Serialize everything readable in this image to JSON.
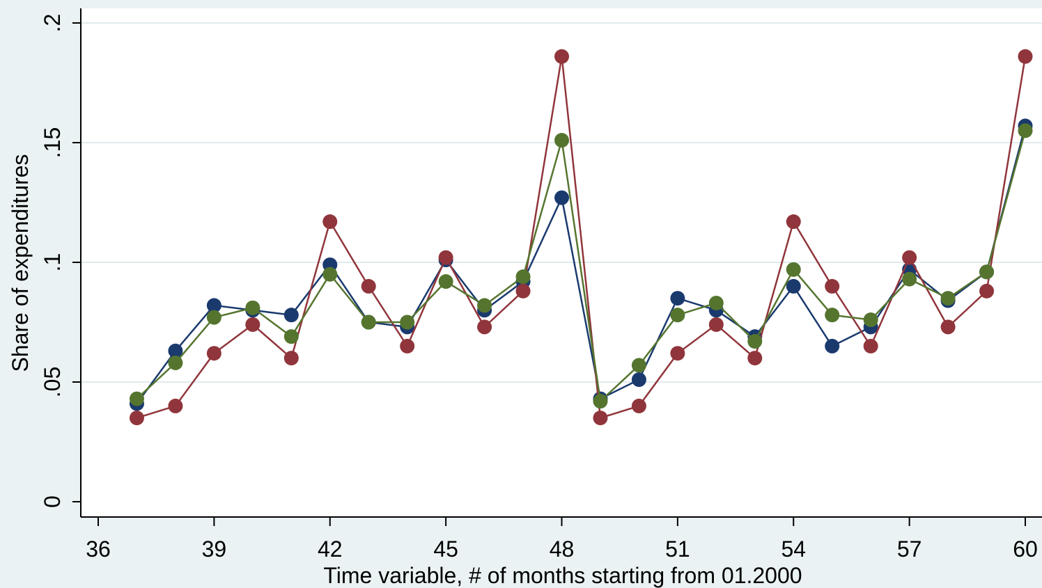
{
  "chart_data": {
    "type": "line",
    "title": "",
    "xlabel": "Time variable, # of months starting from 01.2000",
    "ylabel": "Share of expenditures",
    "xlim": [
      36,
      60
    ],
    "ylim": [
      0,
      0.2
    ],
    "x_ticks": [
      36,
      39,
      42,
      45,
      48,
      51,
      54,
      57,
      60
    ],
    "x_tick_labels": [
      "36",
      "39",
      "42",
      "45",
      "48",
      "51",
      "54",
      "57",
      "60"
    ],
    "y_ticks": [
      0,
      0.05,
      0.1,
      0.15,
      0.2
    ],
    "y_tick_labels": [
      "0",
      ".05",
      ".1",
      ".15",
      ".2"
    ],
    "grid": true,
    "legend": "none",
    "x": [
      37,
      38,
      39,
      40,
      41,
      42,
      43,
      44,
      45,
      46,
      47,
      48,
      49,
      50,
      51,
      52,
      53,
      54,
      55,
      56,
      57,
      58,
      59,
      60
    ],
    "series": [
      {
        "color": "#1a3a6e",
        "values": [
          0.041,
          0.063,
          0.082,
          0.08,
          0.078,
          0.099,
          0.075,
          0.073,
          0.101,
          0.08,
          0.092,
          0.127,
          0.043,
          0.051,
          0.085,
          0.08,
          0.069,
          0.09,
          0.065,
          0.073,
          0.097,
          0.084,
          0.096,
          0.157
        ]
      },
      {
        "color": "#90353b",
        "values": [
          0.035,
          0.04,
          0.062,
          0.074,
          0.06,
          0.117,
          0.09,
          0.065,
          0.102,
          0.073,
          0.088,
          0.186,
          0.035,
          0.04,
          0.062,
          0.074,
          0.06,
          0.117,
          0.09,
          0.065,
          0.102,
          0.073,
          0.088,
          0.186
        ]
      },
      {
        "color": "#55752f",
        "values": [
          0.043,
          0.058,
          0.077,
          0.081,
          0.069,
          0.095,
          0.075,
          0.075,
          0.092,
          0.082,
          0.094,
          0.151,
          0.042,
          0.057,
          0.078,
          0.083,
          0.067,
          0.097,
          0.078,
          0.076,
          0.093,
          0.085,
          0.096,
          0.155
        ]
      }
    ]
  }
}
